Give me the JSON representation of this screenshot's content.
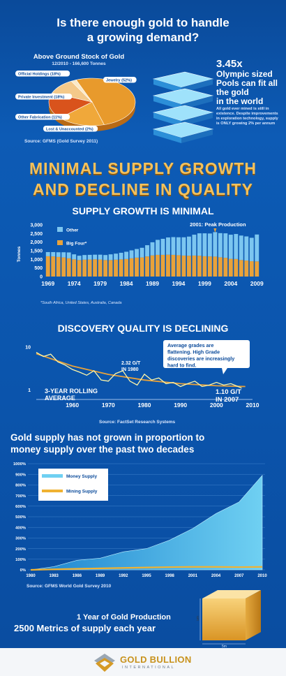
{
  "header": {
    "title_line1": "Is there enough gold to handle",
    "title_line2": "a growing demand?"
  },
  "stock": {
    "title": "Above Ground Stock of Gold",
    "subtitle": "12/2010 - 166,600 Tonnes",
    "source": "Source: GFMS (Gold Survey 2011)"
  },
  "pools": {
    "line1": "3.45x",
    "line2": "Olympic sized",
    "line3": "Pools can fit all",
    "line4": "the gold",
    "line5": "in the world",
    "note": "All gold ever mined is still in existence. Despite improvements in exploration technology, supply is ONLY growing 2% per annum"
  },
  "headline": {
    "line1": "MINIMAL SUPPLY GROWTH",
    "line2": "AND DECLINE IN QUALITY"
  },
  "supply": {
    "title": "SUPPLY GROWTH IS MINIMAL",
    "annotation": "2001: Peak Production",
    "footnote": "*South Africa, United States, Australia, Canada"
  },
  "discovery": {
    "title": "DISCOVERY QUALITY IS DECLINING",
    "callout": "Average grades are flattening. High Grade discoveries are increasingly hard to find.",
    "label_1980_a": "2.32 G/T",
    "label_1980_b": "IN 1980",
    "label_2007_a": "1.10 G/T",
    "label_2007_b": "IN 2007",
    "rolling_a": "3-YEAR ROLLING",
    "rolling_b": "AVERAGE",
    "source": "Source: FactSet Research Systems"
  },
  "money": {
    "title_line1": "Gold supply has not grown in proportion to",
    "title_line2": "money supply over the past two decades",
    "source": "Source: GFMS World Gold Survey 2010"
  },
  "production": {
    "line1": "1 Year of Gold Production",
    "line2": "2500 Metrics of supply each year",
    "dim_side": "5m",
    "dim_bottom": "5m"
  },
  "footer": {
    "brand_line1": "GOLD BULLION",
    "brand_line2": "INTERNATIONAL"
  },
  "colors": {
    "gold": "#e9a23a",
    "other_bar": "#7cc6f0",
    "money_area": "#6fd0f2",
    "mining_line": "#f0b232",
    "headline": "#f3c15c"
  },
  "chart_data": [
    {
      "type": "pie",
      "title": "Above Ground Stock of Gold",
      "categories": [
        "Jewelry (52%)",
        "Official Holdings (18%)",
        "Private Investment (18%)",
        "Other Fabrication (11%)",
        "Lost & Unaccounted (2%)"
      ],
      "values": [
        52,
        18,
        18,
        11,
        2
      ],
      "colors": [
        "#e89a2c",
        "#f0a83a",
        "#d9531c",
        "#f4c98a",
        "#fbe9c7"
      ]
    },
    {
      "type": "bar",
      "title": "SUPPLY GROWTH IS MINIMAL",
      "ylabel": "Tonnes",
      "ylim": [
        0,
        3000
      ],
      "yticks": [
        0,
        500,
        1000,
        1500,
        2000,
        2500,
        3000
      ],
      "xticks": [
        "1969",
        "1974",
        "1979",
        "1984",
        "1989",
        "1994",
        "1999",
        "2004",
        "2009"
      ],
      "legend": [
        "Other",
        "Big Four*"
      ],
      "x": [
        1969,
        1970,
        1971,
        1972,
        1973,
        1974,
        1975,
        1976,
        1977,
        1978,
        1979,
        1980,
        1981,
        1982,
        1983,
        1984,
        1985,
        1986,
        1987,
        1988,
        1989,
        1990,
        1991,
        1992,
        1993,
        1994,
        1995,
        1996,
        1997,
        1998,
        1999,
        2000,
        2001,
        2002,
        2003,
        2004,
        2005,
        2006,
        2007,
        2008,
        2009
      ],
      "series": [
        {
          "name": "Big Four*",
          "values": [
            1180,
            1170,
            1140,
            1110,
            1060,
            1000,
            960,
            980,
            990,
            1000,
            990,
            960,
            960,
            980,
            1000,
            1020,
            1060,
            1100,
            1110,
            1170,
            1230,
            1260,
            1260,
            1270,
            1260,
            1240,
            1220,
            1210,
            1220,
            1210,
            1180,
            1170,
            1160,
            1120,
            1090,
            1030,
            1020,
            960,
            930,
            890,
            880
          ]
        },
        {
          "name": "Other",
          "values": [
            240,
            250,
            270,
            300,
            340,
            290,
            250,
            270,
            270,
            270,
            280,
            290,
            330,
            350,
            380,
            420,
            460,
            500,
            560,
            650,
            760,
            870,
            930,
            1000,
            1030,
            1040,
            1060,
            1110,
            1210,
            1300,
            1330,
            1330,
            1420,
            1400,
            1420,
            1400,
            1450,
            1420,
            1400,
            1360,
            1560
          ]
        }
      ]
    },
    {
      "type": "line",
      "title": "DISCOVERY QUALITY IS DECLINING",
      "xlim": [
        1950,
        2010
      ],
      "xticks": [
        1960,
        1970,
        1980,
        1990,
        2000,
        2010
      ],
      "ylim": [
        0.6,
        12
      ],
      "yticks": [
        1,
        10
      ],
      "yscale": "log",
      "series": [
        {
          "name": "3-YEAR ROLLING AVERAGE",
          "x": [
            1950,
            1952,
            1954,
            1956,
            1958,
            1960,
            1962,
            1964,
            1966,
            1968,
            1970,
            1972,
            1974,
            1976,
            1978,
            1980,
            1982,
            1984,
            1986,
            1988,
            1990,
            1992,
            1994,
            1996,
            1998,
            2000,
            2002,
            2004,
            2006,
            2007
          ],
          "values": [
            7.5,
            6.0,
            6.8,
            4.5,
            3.8,
            3.0,
            2.6,
            2.2,
            2.8,
            1.7,
            1.6,
            2.4,
            2.8,
            1.6,
            1.3,
            2.32,
            1.7,
            1.9,
            1.4,
            1.5,
            1.2,
            1.4,
            1.6,
            1.2,
            1.3,
            1.5,
            1.3,
            1.4,
            1.2,
            1.1
          ]
        },
        {
          "name": "trend",
          "x": [
            1950,
            1960,
            1970,
            1980,
            1990,
            2000,
            2008
          ],
          "values": [
            7.0,
            3.6,
            2.3,
            1.7,
            1.4,
            1.25,
            1.2
          ]
        }
      ]
    },
    {
      "type": "area",
      "title": "Gold supply has not grown in proportion to money supply over the past two decades",
      "categories": [
        "1980",
        "1983",
        "1986",
        "1989",
        "1992",
        "1995",
        "1998",
        "2001",
        "2004",
        "2007",
        "2010"
      ],
      "ylim": [
        0,
        1000
      ],
      "yticks": [
        "0%",
        "100%",
        "200%",
        "300%",
        "400%",
        "500%",
        "600%",
        "700%",
        "800%",
        "900%",
        "1000%"
      ],
      "legend": [
        "Money Supply",
        "Mining Supply"
      ],
      "series": [
        {
          "name": "Money Supply",
          "values": [
            0,
            30,
            90,
            110,
            170,
            200,
            280,
            390,
            530,
            640,
            890
          ]
        },
        {
          "name": "Mining Supply",
          "values": [
            0,
            5,
            10,
            14,
            18,
            22,
            26,
            28,
            28,
            26,
            28
          ]
        }
      ]
    }
  ]
}
